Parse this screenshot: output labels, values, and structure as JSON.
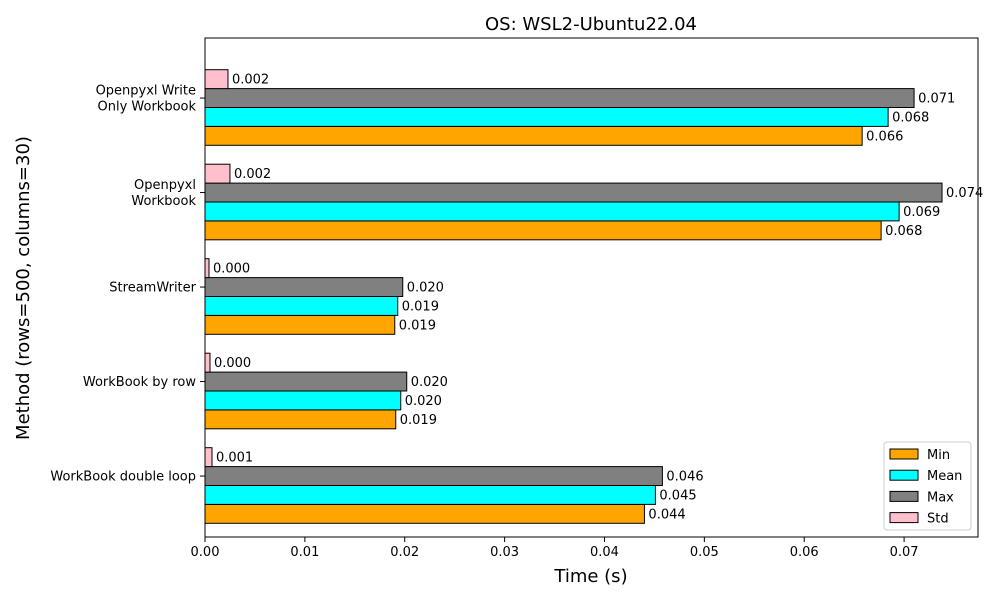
{
  "chart_data": {
    "type": "bar",
    "orientation": "horizontal",
    "title": "OS: WSL2-Ubuntu22.04",
    "xlabel": "Time (s)",
    "ylabel": "Method (rows=500, columns=30)",
    "xlim": [
      0,
      0.0774
    ],
    "xticks": [
      "0.00",
      "0.01",
      "0.02",
      "0.03",
      "0.04",
      "0.05",
      "0.06",
      "0.07"
    ],
    "grid": false,
    "legend_position": "bottom-right",
    "categories": [
      "WorkBook double loop",
      "WorkBook by row",
      "StreamWriter",
      "Openpyxl\nWorkbook",
      "Openpyxl Write\nOnly Workbook"
    ],
    "series": [
      {
        "name": "Min",
        "color": "#ffa500",
        "values": [
          0.044,
          0.0191,
          0.019,
          0.0677,
          0.0658
        ],
        "labels": [
          "0.044",
          "0.019",
          "0.019",
          "0.068",
          "0.066"
        ]
      },
      {
        "name": "Mean",
        "color": "#00ffff",
        "values": [
          0.0451,
          0.0196,
          0.0193,
          0.0695,
          0.0684
        ],
        "labels": [
          "0.045",
          "0.020",
          "0.019",
          "0.069",
          "0.068"
        ]
      },
      {
        "name": "Max",
        "color": "#808080",
        "values": [
          0.0458,
          0.0202,
          0.0198,
          0.0738,
          0.071
        ],
        "labels": [
          "0.046",
          "0.020",
          "0.020",
          "0.074",
          "0.071"
        ]
      },
      {
        "name": "Std",
        "color": "#ffc0cb",
        "values": [
          0.0007,
          0.0005,
          0.0004,
          0.0025,
          0.0023
        ],
        "labels": [
          "0.001",
          "0.000",
          "0.000",
          "0.002",
          "0.002"
        ]
      }
    ]
  }
}
